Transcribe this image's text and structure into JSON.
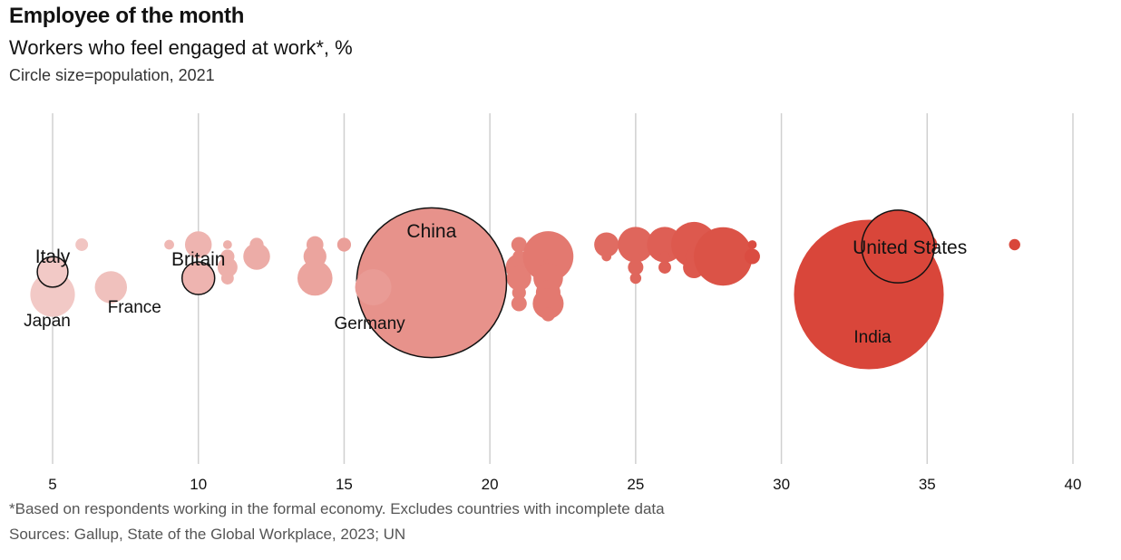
{
  "title": "Employee of the month",
  "subtitle": "Workers who feel engaged at work*, %",
  "note": "Circle size=population, 2021",
  "footnote": "*Based on respondents working in the formal economy. Excludes countries with incomplete data",
  "source": "Sources: Gallup, State of the Global Workplace, 2023; UN",
  "colors": {
    "low": "#f2c9c6",
    "mid": "#e8958e",
    "high": "#d9463a",
    "grid": "#d0d0d0",
    "outline": "#121212"
  },
  "chart_data": {
    "type": "scatter",
    "title": "Employee of the month",
    "subtitle": "Workers who feel engaged at work*, %",
    "xlabel": "",
    "ylabel": "",
    "xlim": [
      5,
      40
    ],
    "xticks": [
      5,
      10,
      15,
      20,
      25,
      30,
      35,
      40
    ],
    "grid": true,
    "size_encoding": "population, 2021",
    "labeled_points": [
      {
        "label": "Italy",
        "x": 5,
        "population_m": 59,
        "outlined": true,
        "label_pos": "above"
      },
      {
        "label": "Japan",
        "x": 5,
        "population_m": 125,
        "outlined": false,
        "label_pos": "below"
      },
      {
        "label": "France",
        "x": 7,
        "population_m": 65,
        "outlined": false,
        "label_pos": "below"
      },
      {
        "label": "Britain",
        "x": 10,
        "population_m": 67,
        "outlined": true,
        "label_pos": "above"
      },
      {
        "label": "Germany",
        "x": 16,
        "population_m": 83,
        "outlined": false,
        "label_pos": "below"
      },
      {
        "label": "China",
        "x": 18,
        "population_m": 1412,
        "outlined": true,
        "label_pos": "above"
      },
      {
        "label": "United States",
        "x": 34,
        "population_m": 332,
        "outlined": true,
        "label_pos": "above"
      },
      {
        "label": "India",
        "x": 33,
        "population_m": 1408,
        "outlined": false,
        "label_pos": "below"
      }
    ],
    "unlabeled_points": [
      {
        "x": 6,
        "population_m": 10
      },
      {
        "x": 9,
        "population_m": 6
      },
      {
        "x": 10,
        "population_m": 45
      },
      {
        "x": 11,
        "population_m": 5
      },
      {
        "x": 11,
        "population_m": 12
      },
      {
        "x": 11,
        "population_m": 25
      },
      {
        "x": 11,
        "population_m": 10
      },
      {
        "x": 12,
        "population_m": 12
      },
      {
        "x": 12,
        "population_m": 45
      },
      {
        "x": 14,
        "population_m": 18
      },
      {
        "x": 14,
        "population_m": 33
      },
      {
        "x": 14,
        "population_m": 7
      },
      {
        "x": 14,
        "population_m": 77
      },
      {
        "x": 15,
        "population_m": 12
      },
      {
        "x": 16,
        "population_m": 9
      },
      {
        "x": 16,
        "population_m": 6
      },
      {
        "x": 17,
        "population_m": 10
      },
      {
        "x": 17,
        "population_m": 10
      },
      {
        "x": 17,
        "population_m": 8
      },
      {
        "x": 18,
        "population_m": 10
      },
      {
        "x": 19,
        "population_m": 38
      },
      {
        "x": 19,
        "population_m": 12
      },
      {
        "x": 19,
        "population_m": 45
      },
      {
        "x": 19,
        "population_m": 12
      },
      {
        "x": 19,
        "population_m": 6
      },
      {
        "x": 19,
        "population_m": 8
      },
      {
        "x": 19,
        "population_m": 10
      },
      {
        "x": 19,
        "population_m": 15
      },
      {
        "x": 19,
        "population_m": 60
      },
      {
        "x": 20,
        "population_m": 5
      },
      {
        "x": 20,
        "population_m": 5
      },
      {
        "x": 20,
        "population_m": 25
      },
      {
        "x": 20,
        "population_m": 5
      },
      {
        "x": 20,
        "population_m": 10
      },
      {
        "x": 21,
        "population_m": 15
      },
      {
        "x": 21,
        "population_m": 10
      },
      {
        "x": 21,
        "population_m": 45
      },
      {
        "x": 21,
        "population_m": 38
      },
      {
        "x": 21,
        "population_m": 12
      },
      {
        "x": 21,
        "population_m": 15
      },
      {
        "x": 22,
        "population_m": 38
      },
      {
        "x": 22,
        "population_m": 160
      },
      {
        "x": 22,
        "population_m": 15
      },
      {
        "x": 22,
        "population_m": 55
      },
      {
        "x": 22,
        "population_m": 38
      },
      {
        "x": 22,
        "population_m": 60
      },
      {
        "x": 22,
        "population_m": 12
      },
      {
        "x": 24,
        "population_m": 38
      },
      {
        "x": 24,
        "population_m": 6
      },
      {
        "x": 25,
        "population_m": 80
      },
      {
        "x": 25,
        "population_m": 6
      },
      {
        "x": 25,
        "population_m": 15
      },
      {
        "x": 25,
        "population_m": 8
      },
      {
        "x": 26,
        "population_m": 80
      },
      {
        "x": 26,
        "population_m": 6
      },
      {
        "x": 26,
        "population_m": 10
      },
      {
        "x": 27,
        "population_m": 130
      },
      {
        "x": 27,
        "population_m": 18
      },
      {
        "x": 27,
        "population_m": 30
      },
      {
        "x": 28,
        "population_m": 25
      },
      {
        "x": 28,
        "population_m": 215
      },
      {
        "x": 29,
        "population_m": 5
      },
      {
        "x": 29,
        "population_m": 15
      },
      {
        "x": 32,
        "population_m": 10
      },
      {
        "x": 32,
        "population_m": 12
      },
      {
        "x": 34,
        "population_m": 45
      },
      {
        "x": 35,
        "population_m": 25
      },
      {
        "x": 38,
        "population_m": 8
      }
    ]
  }
}
